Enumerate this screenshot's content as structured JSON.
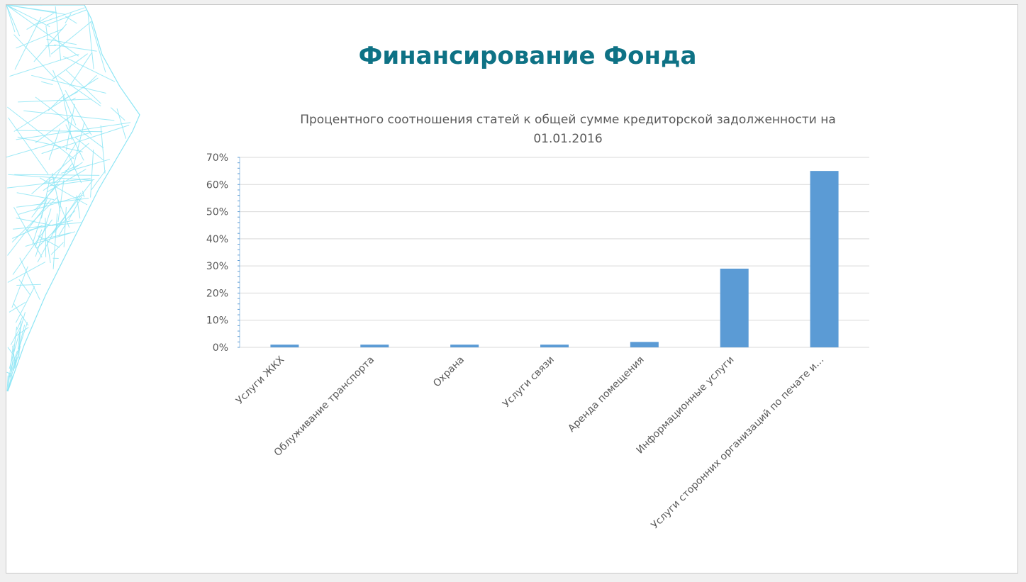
{
  "slide": {
    "title": "Финансирование Фонда"
  },
  "colors": {
    "title": "#0e7285",
    "bar": "#5b9bd5",
    "grid": "#d9d9d9",
    "text": "#595959",
    "decoration": "#8ee6f5"
  },
  "chart_data": {
    "type": "bar",
    "title": "Процентного соотношения статей к общей сумме кредиторской задолженности на 01.01.2016",
    "xlabel": "",
    "ylabel": "",
    "categories": [
      "Услуги ЖКХ",
      "Облуживание транспорта",
      "Охрана",
      "Услуги связи",
      "Аренда помещения",
      "Информационные услуги",
      "Услуги сторонних организаций по печате и…"
    ],
    "values": [
      0.01,
      0.01,
      0.01,
      0.01,
      0.02,
      0.29,
      0.65
    ],
    "ylim": [
      0,
      0.7
    ],
    "yticks": [
      "0%",
      "10%",
      "20%",
      "30%",
      "40%",
      "50%",
      "60%",
      "70%"
    ],
    "grid": true,
    "legend": "none"
  }
}
